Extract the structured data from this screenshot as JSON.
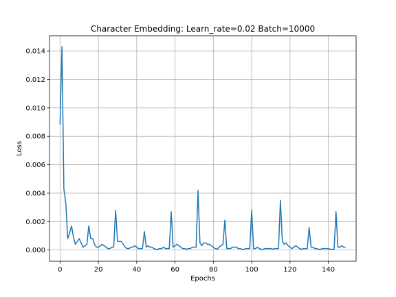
{
  "chart_data": {
    "type": "line",
    "title": "Character Embedding: Learn_rate=0.02 Batch=10000",
    "xlabel": "Epochs",
    "ylabel": "Loss",
    "xlim": [
      -5.5,
      154.5
    ],
    "ylim": [
      -0.00079,
      0.01507
    ],
    "grid": true,
    "legend": "none",
    "line_color": "#1f77b4",
    "x_ticks": [
      0,
      20,
      40,
      60,
      80,
      100,
      120,
      140
    ],
    "x_tick_labels": [
      "0",
      "20",
      "40",
      "60",
      "80",
      "100",
      "120",
      "140"
    ],
    "y_ticks": [
      0.0,
      0.002,
      0.004,
      0.006,
      0.008,
      0.01,
      0.012,
      0.014
    ],
    "y_tick_labels": [
      "0.000",
      "0.002",
      "0.004",
      "0.006",
      "0.008",
      "0.010",
      "0.012",
      "0.014"
    ],
    "series": [
      {
        "x": [
          0,
          1,
          2,
          3,
          4,
          5,
          6,
          7,
          8,
          9,
          10,
          11,
          12,
          13,
          14,
          15,
          16,
          17,
          18,
          19,
          20,
          21,
          22,
          23,
          24,
          25,
          26,
          27,
          28,
          29,
          30,
          31,
          32,
          33,
          34,
          35,
          36,
          37,
          38,
          39,
          40,
          41,
          42,
          43,
          44,
          45,
          46,
          47,
          48,
          49,
          50,
          51,
          52,
          53,
          54,
          55,
          56,
          57,
          58,
          59,
          60,
          61,
          62,
          63,
          64,
          65,
          66,
          67,
          68,
          69,
          70,
          71,
          72,
          73,
          74,
          75,
          76,
          77,
          78,
          79,
          80,
          81,
          82,
          83,
          84,
          85,
          86,
          87,
          88,
          89,
          90,
          91,
          92,
          93,
          94,
          95,
          96,
          97,
          98,
          99,
          100,
          101,
          102,
          103,
          104,
          105,
          106,
          107,
          108,
          109,
          110,
          111,
          112,
          113,
          114,
          115,
          116,
          117,
          118,
          119,
          120,
          121,
          122,
          123,
          124,
          125,
          126,
          127,
          128,
          129,
          130,
          131,
          132,
          133,
          134,
          135,
          136,
          137,
          138,
          139,
          140,
          141,
          142,
          143,
          144,
          145,
          146,
          147,
          148,
          149
        ],
        "values": [
          0.0088,
          0.0143,
          0.0043,
          0.0033,
          0.0008,
          0.0012,
          0.0017,
          0.0009,
          0.0004,
          0.0006,
          0.0008,
          0.0005,
          0.0002,
          0.0003,
          0.0004,
          0.0017,
          0.0008,
          0.0008,
          0.0004,
          0.0002,
          0.0002,
          0.0003,
          0.0004,
          0.0003,
          0.0002,
          0.0001,
          0.0001,
          0.0002,
          0.0002,
          0.0028,
          0.0006,
          0.0006,
          0.0006,
          0.0004,
          0.0002,
          0.0001,
          0.0001,
          0.0002,
          0.0002,
          0.0003,
          0.0002,
          0.0001,
          0.0001,
          0.0001,
          0.0013,
          0.0002,
          0.0003,
          0.0002,
          0.0002,
          0.0001,
          5e-05,
          5e-05,
          0.0001,
          0.0001,
          0.0002,
          0.0001,
          0.0001,
          0.0001,
          0.0027,
          0.0002,
          0.0003,
          0.0004,
          0.0003,
          0.0002,
          0.0001,
          0.0001,
          5e-05,
          0.0001,
          0.0001,
          0.0002,
          0.0002,
          0.0002,
          0.0042,
          0.0005,
          0.0003,
          0.0005,
          0.0005,
          0.0004,
          0.0004,
          0.0003,
          0.0002,
          0.0001,
          5e-05,
          0.0002,
          0.0003,
          0.0004,
          0.0021,
          0.0001,
          0.0001,
          0.0001,
          0.0002,
          0.0002,
          0.0002,
          0.0001,
          0.0001,
          5e-05,
          5e-05,
          0.0001,
          0.0001,
          0.0001,
          0.0028,
          0.0001,
          0.0001,
          0.0002,
          0.0001,
          5e-05,
          5e-05,
          0.0001,
          0.0001,
          0.0001,
          0.0001,
          5e-05,
          0.0001,
          0.0001,
          0.0001,
          0.0035,
          0.0006,
          0.0004,
          0.0005,
          0.0003,
          0.0002,
          0.0001,
          0.0002,
          0.0003,
          0.0002,
          0.0001,
          5e-05,
          0.0001,
          0.0001,
          0.0001,
          0.0016,
          0.0002,
          0.0002,
          0.0001,
          0.0001,
          5e-05,
          5e-05,
          0.0001,
          0.0001,
          0.0001,
          0.0001,
          5e-05,
          5e-05,
          5e-05,
          0.0027,
          0.0002,
          0.0002,
          0.0003,
          0.0002,
          0.0002
        ]
      }
    ]
  }
}
